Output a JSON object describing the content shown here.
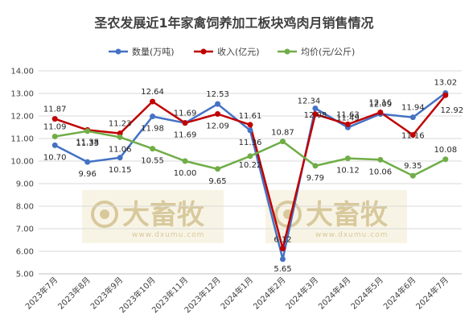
{
  "chart_data": {
    "type": "line",
    "title": "圣农发展近1年家禽饲养加工板块鸡肉月销售情况",
    "categories": [
      "2023年7月",
      "2023年8月",
      "2023年9月",
      "2023年10月",
      "2023年11月",
      "2023年12月",
      "2024年1月",
      "2024年2月",
      "2024年3月",
      "2024年4月",
      "2024年5月",
      "2024年6月",
      "2024年7月"
    ],
    "ylim": [
      5,
      14
    ],
    "ytick_labels": [
      "5.00",
      "6.00",
      "7.00",
      "8.00",
      "9.00",
      "10.00",
      "11.00",
      "12.00",
      "13.00",
      "14.00"
    ],
    "grid": true,
    "legend_position": "top",
    "series": [
      {
        "name": "数量(万吨)",
        "color": "#4472c4",
        "values": [
          10.7,
          9.96,
          10.15,
          11.98,
          11.69,
          12.53,
          11.36,
          5.65,
          12.34,
          11.49,
          12.09,
          11.94,
          13.02
        ],
        "labels": [
          "10.70",
          "9.96",
          "10.15",
          "11.98",
          "11.69",
          "12.53",
          "11.36",
          "5.65",
          "12.34",
          "11.49",
          "12.09",
          "11.94",
          "13.02"
        ]
      },
      {
        "name": "收入(亿元)",
        "color": "#c00000",
        "values": [
          11.87,
          11.38,
          11.23,
          12.64,
          11.69,
          12.09,
          11.61,
          6.12,
          12.08,
          11.63,
          12.16,
          11.16,
          12.92
        ],
        "labels": [
          "11.87",
          "11.38",
          "11.23",
          "12.64",
          "11.69",
          "12.09",
          "11.61",
          "6.12",
          "12.08",
          "11.63",
          "12.16",
          "11.16",
          "12.92"
        ]
      },
      {
        "name": "均价(元/公斤)",
        "color": "#70ad47",
        "values": [
          11.09,
          11.33,
          11.06,
          10.55,
          10.0,
          9.65,
          10.22,
          10.87,
          9.79,
          10.12,
          10.06,
          9.35,
          10.08
        ],
        "labels": [
          "11.09",
          "11.33",
          "11.06",
          "10.55",
          "10.00",
          "9.65",
          "10.22",
          "10.87",
          "9.79",
          "10.12",
          "10.06",
          "9.35",
          "10.08"
        ]
      }
    ]
  },
  "watermark": {
    "brand": "大畜牧",
    "url": "www.dxumu.com",
    "color": "#d8c99d"
  }
}
